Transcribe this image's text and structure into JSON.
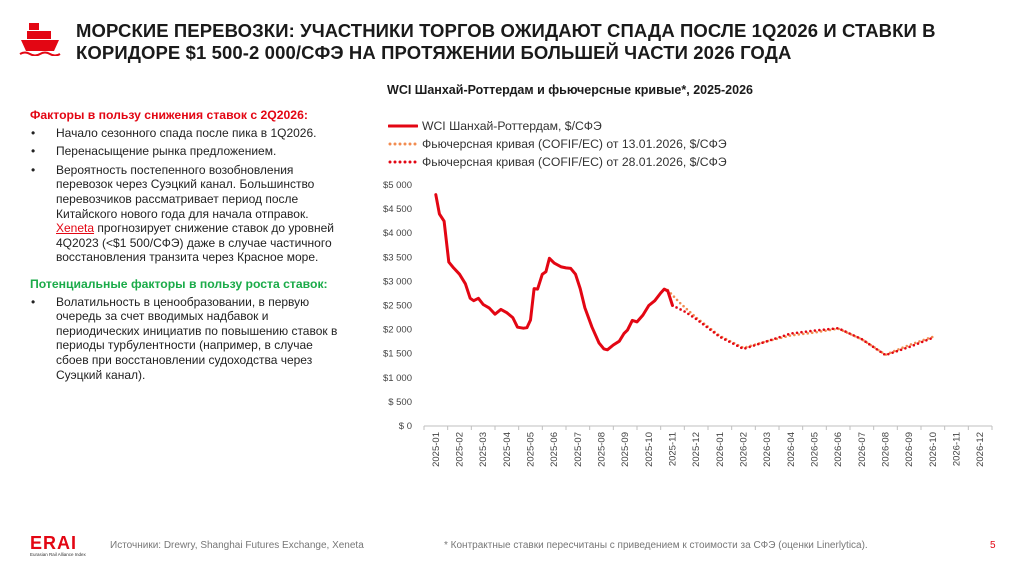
{
  "header": {
    "title": "МОРСКИЕ ПЕРЕВОЗКИ: УЧАСТНИКИ ТОРГОВ ОЖИДАЮТ СПАДА ПОСЛЕ 1Q2026 И СТАВКИ В КОРИДОРЕ $1 500-2 000/СФЭ НА ПРОТЯЖЕНИИ БОЛЬШЕЙ ЧАСТИ 2026 ГОДА",
    "icon": "ship-icon"
  },
  "left": {
    "decline_heading": "Факторы в пользу снижения ставок с 2Q2026:",
    "decline_items": [
      "Начало сезонного спада после пика в 1Q2026.",
      "Перенасыщение рынка предложением."
    ],
    "decline_item3_before": "Вероятность постепенного возобновления перевозок через Суэцкий канал. Большинство перевозчиков рассматривает период после Китайского нового года для  начала отправок. ",
    "decline_item3_link": "Xeneta",
    "decline_item3_after": " прогнозирует снижение ставок до уровней 4Q2023 (<$1 500/СФЭ) даже в случае частичного восстановления транзита через Красное море.",
    "growth_heading": "Потенциальные факторы в пользу роста ставок:",
    "growth_items": [
      "Волатильность в ценообразовании, в первую очередь за счет вводимых надбавок и периодических инициатив по повышению ставок в периоды турбулентности (например, в случае сбоев при восстановлении судоходства через Суэцкий канал)."
    ]
  },
  "chart_data": {
    "type": "line",
    "title": "WCI Шанхай-Роттердам и фьючерсные кривые*, 2025-2026",
    "xlabel": "",
    "ylabel": "",
    "ylim": [
      0,
      5000
    ],
    "yticks": [
      0,
      500,
      1000,
      1500,
      2000,
      2500,
      3000,
      3500,
      4000,
      4500,
      5000
    ],
    "ytick_labels": [
      "$ 0",
      "$ 500",
      "$1 000",
      "$1 500",
      "$2 000",
      "$2 500",
      "$3 000",
      "$3 500",
      "$4 000",
      "$4 500",
      "$5 000"
    ],
    "categories": [
      "2025-01",
      "2025-02",
      "2025-03",
      "2025-04",
      "2025-05",
      "2025-06",
      "2025-07",
      "2025-08",
      "2025-09",
      "2025-10",
      "2025-11",
      "2025-12",
      "2026-01",
      "2026-02",
      "2026-03",
      "2026-04",
      "2026-05",
      "2026-06",
      "2026-07",
      "2026-08",
      "2026-09",
      "2026-10",
      "2026-11",
      "2026-12"
    ],
    "legend_position": "top-left",
    "series": [
      {
        "name": "WCI Шанхай-Роттердам, $/СФЭ",
        "color": "#e30613",
        "style": "solid",
        "points": [
          [
            0.0,
            4800
          ],
          [
            0.15,
            4400
          ],
          [
            0.35,
            4250
          ],
          [
            0.55,
            3400
          ],
          [
            0.75,
            3280
          ],
          [
            1.0,
            3150
          ],
          [
            1.25,
            2950
          ],
          [
            1.45,
            2650
          ],
          [
            1.6,
            2600
          ],
          [
            1.8,
            2650
          ],
          [
            2.0,
            2520
          ],
          [
            2.25,
            2450
          ],
          [
            2.5,
            2320
          ],
          [
            2.75,
            2420
          ],
          [
            3.0,
            2350
          ],
          [
            3.25,
            2250
          ],
          [
            3.45,
            2050
          ],
          [
            3.7,
            2030
          ],
          [
            3.85,
            2040
          ],
          [
            4.0,
            2200
          ],
          [
            4.15,
            2850
          ],
          [
            4.3,
            2840
          ],
          [
            4.5,
            3150
          ],
          [
            4.65,
            3200
          ],
          [
            4.8,
            3480
          ],
          [
            5.0,
            3380
          ],
          [
            5.3,
            3300
          ],
          [
            5.5,
            3280
          ],
          [
            5.7,
            3270
          ],
          [
            5.9,
            3150
          ],
          [
            6.1,
            2850
          ],
          [
            6.3,
            2450
          ],
          [
            6.6,
            2050
          ],
          [
            6.9,
            1720
          ],
          [
            7.1,
            1600
          ],
          [
            7.25,
            1580
          ],
          [
            7.5,
            1680
          ],
          [
            7.75,
            1760
          ],
          [
            7.95,
            1920
          ],
          [
            8.1,
            1990
          ],
          [
            8.3,
            2190
          ],
          [
            8.5,
            2160
          ],
          [
            8.75,
            2300
          ],
          [
            9.0,
            2500
          ],
          [
            9.25,
            2600
          ],
          [
            9.5,
            2760
          ],
          [
            9.65,
            2840
          ],
          [
            9.8,
            2800
          ],
          [
            10.0,
            2500
          ]
        ]
      },
      {
        "name": "Фьючерсная кривая (COFIF/EC) от 13.01.2026, $/СФЭ",
        "color": "#f28c50",
        "style": "dotted",
        "points": [
          [
            9.8,
            2820
          ],
          [
            10.3,
            2560
          ],
          [
            11.0,
            2250
          ],
          [
            12.0,
            1870
          ],
          [
            13.0,
            1620
          ],
          [
            14.0,
            1760
          ],
          [
            15.0,
            1880
          ],
          [
            16.0,
            1940
          ],
          [
            17.0,
            2020
          ],
          [
            18.0,
            1800
          ],
          [
            19.0,
            1480
          ],
          [
            20.0,
            1680
          ],
          [
            21.0,
            1850
          ]
        ]
      },
      {
        "name": "Фьючерсная кривая (COFIF/EC) от 28.01.2026, $/СФЭ",
        "color": "#e30613",
        "style": "dotted",
        "points": [
          [
            10.0,
            2500
          ],
          [
            10.5,
            2380
          ],
          [
            11.0,
            2220
          ],
          [
            12.0,
            1850
          ],
          [
            13.0,
            1600
          ],
          [
            14.0,
            1760
          ],
          [
            15.0,
            1920
          ],
          [
            16.0,
            1980
          ],
          [
            17.0,
            2030
          ],
          [
            18.0,
            1800
          ],
          [
            19.0,
            1470
          ],
          [
            20.0,
            1640
          ],
          [
            21.0,
            1830
          ]
        ]
      }
    ]
  },
  "footer": {
    "logo_text": "ERAI",
    "logo_sub": "Eurasian Rail Alliance Index",
    "sources": "Источники: Drewry, Shanghai Futures Exchange, Xeneta",
    "note": "* Контрактные ставки пересчитаны с приведением к стоимости  за СФЭ (оценки Linerlytica).",
    "page": "5"
  },
  "colors": {
    "accent": "#e30613",
    "green": "#1bab49",
    "orange": "#f28c50"
  }
}
